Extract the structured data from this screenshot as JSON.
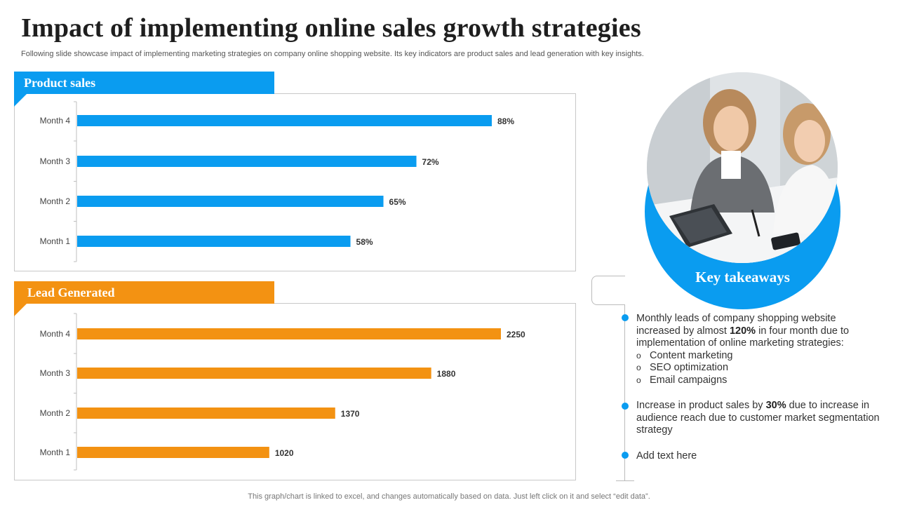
{
  "slide": {
    "title": "Impact of implementing online sales growth strategies",
    "subtitle": "Following slide showcase impact of implementing marketing strategies on company online shopping website. Its key indicators are product sales and lead generation with key insights.",
    "footer": "This graph/chart is linked to excel,  and changes automatically based on data. Just left click on it and select “edit data”."
  },
  "colors": {
    "blue": "#0a9cf0",
    "orange": "#f39212"
  },
  "chart_data": [
    {
      "type": "bar",
      "orientation": "horizontal",
      "title": "Product sales",
      "categories": [
        "Month 4",
        "Month 3",
        "Month 2",
        "Month 1"
      ],
      "values": [
        88,
        72,
        65,
        58
      ],
      "value_labels": [
        "88%",
        "72%",
        "65%",
        "58%"
      ],
      "xlim": [
        0,
        100
      ],
      "grid": false,
      "color": "#0a9cf0"
    },
    {
      "type": "bar",
      "orientation": "horizontal",
      "title": "Lead Generated",
      "categories": [
        "Month 4",
        "Month 3",
        "Month 2",
        "Month 1"
      ],
      "values": [
        2250,
        1880,
        1370,
        1020
      ],
      "value_labels": [
        "2250",
        "1880",
        "1370",
        "1020"
      ],
      "xlim": [
        0,
        2500
      ],
      "grid": false,
      "color": "#f39212"
    }
  ],
  "takeaways": {
    "title": "Key takeaways",
    "image_icon": "business-meeting-photo",
    "item1": {
      "pre": "Monthly leads of company shopping website increased by almost ",
      "bold": "120%",
      "post": " in four month due to implementation of online marketing strategies:",
      "sub": [
        "Content marketing",
        "SEO optimization",
        "Email campaigns"
      ],
      "bullet": "o"
    },
    "item2": {
      "pre": "Increase in product sales by ",
      "bold": "30%",
      "post": " due to increase in audience reach due to customer market segmentation strategy"
    },
    "item3": {
      "text": "Add text here"
    }
  }
}
